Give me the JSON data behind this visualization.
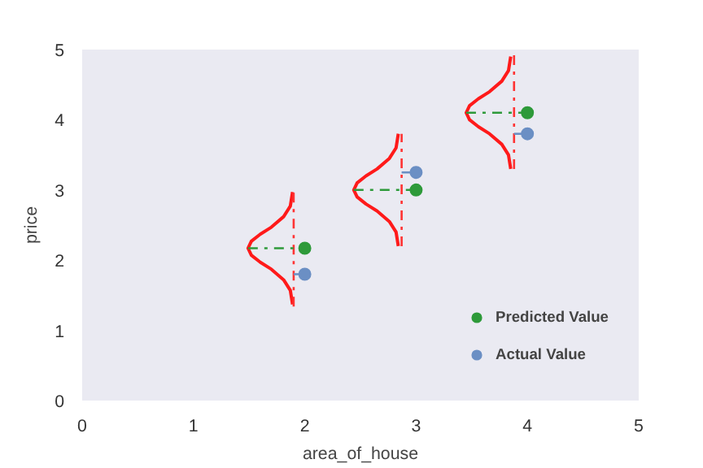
{
  "chart_data": {
    "type": "scatter",
    "xlabel": "area_of_house",
    "ylabel": "price",
    "xlim": [
      0,
      5
    ],
    "ylim": [
      0,
      5
    ],
    "xticks": [
      0,
      1,
      2,
      3,
      4,
      5
    ],
    "yticks": [
      0,
      1,
      2,
      3,
      4,
      5
    ],
    "grid": false,
    "legend": "bottom right",
    "series": [
      {
        "type": "line",
        "color": "#ff1a1a",
        "line_style": "solid",
        "x": [
          1.89,
          1.87,
          1.81,
          1.7,
          1.6,
          1.52,
          1.49,
          1.52,
          1.6,
          1.7,
          1.81,
          1.87,
          1.89
        ],
        "values": [
          1.37,
          1.57,
          1.72,
          1.87,
          1.97,
          2.07,
          2.17,
          2.27,
          2.37,
          2.47,
          2.62,
          2.77,
          2.97
        ]
      },
      {
        "type": "line",
        "color": "#ff1a1a",
        "line_style": "solid",
        "x": [
          2.84,
          2.82,
          2.76,
          2.65,
          2.55,
          2.47,
          2.44,
          2.47,
          2.55,
          2.65,
          2.76,
          2.82,
          2.84
        ],
        "values": [
          2.2,
          2.4,
          2.55,
          2.7,
          2.8,
          2.9,
          3.0,
          3.1,
          3.2,
          3.3,
          3.45,
          3.6,
          3.8
        ]
      },
      {
        "type": "line",
        "color": "#ff1a1a",
        "line_style": "solid",
        "x": [
          3.85,
          3.83,
          3.77,
          3.66,
          3.56,
          3.48,
          3.45,
          3.48,
          3.56,
          3.66,
          3.77,
          3.83,
          3.85
        ],
        "values": [
          3.3,
          3.5,
          3.65,
          3.8,
          3.9,
          4.0,
          4.1,
          4.2,
          4.3,
          4.4,
          4.55,
          4.7,
          4.9
        ]
      },
      {
        "type": "line",
        "color": "#ff3333",
        "line_style": "dashed",
        "x": [
          1.9,
          1.9
        ],
        "values": [
          1.34,
          3.0
        ]
      },
      {
        "type": "line",
        "color": "#ff3333",
        "line_style": "dashed",
        "x": [
          2.87,
          2.87
        ],
        "values": [
          2.2,
          3.8
        ]
      },
      {
        "type": "line",
        "color": "#ff3333",
        "line_style": "dashed",
        "x": [
          3.88,
          3.88
        ],
        "values": [
          3.3,
          4.95
        ]
      },
      {
        "type": "line",
        "color": "#2e9a3a",
        "line_style": "dashed",
        "x": [
          1.49,
          2
        ],
        "values": [
          2.17,
          2.17
        ]
      },
      {
        "type": "line",
        "color": "#2e9a3a",
        "line_style": "dashed",
        "x": [
          2.44,
          3
        ],
        "values": [
          3.0,
          3.0
        ]
      },
      {
        "type": "line",
        "color": "#2e9a3a",
        "line_style": "dashed",
        "x": [
          3.45,
          4
        ],
        "values": [
          4.1,
          4.1
        ]
      },
      {
        "type": "line",
        "color": "#6b8fc4",
        "line_style": "dashed",
        "x": [
          1.9,
          2
        ],
        "values": [
          1.8,
          1.8
        ]
      },
      {
        "type": "line",
        "color": "#6b8fc4",
        "line_style": "dashed",
        "x": [
          2.87,
          3
        ],
        "values": [
          3.25,
          3.25
        ]
      },
      {
        "type": "line",
        "color": "#6b8fc4",
        "line_style": "dashed",
        "x": [
          3.88,
          4
        ],
        "values": [
          3.8,
          3.8
        ]
      },
      {
        "name": "Predicted Value",
        "marker": "circle",
        "color": "#2e9a3a",
        "x": [
          2,
          3,
          4
        ],
        "values": [
          2.17,
          3.0,
          4.1
        ]
      },
      {
        "name": "Actual Value",
        "marker": "circle",
        "color": "#6b8fc4",
        "x": [
          2,
          3,
          4
        ],
        "values": [
          1.8,
          3.25,
          3.8
        ]
      }
    ]
  }
}
